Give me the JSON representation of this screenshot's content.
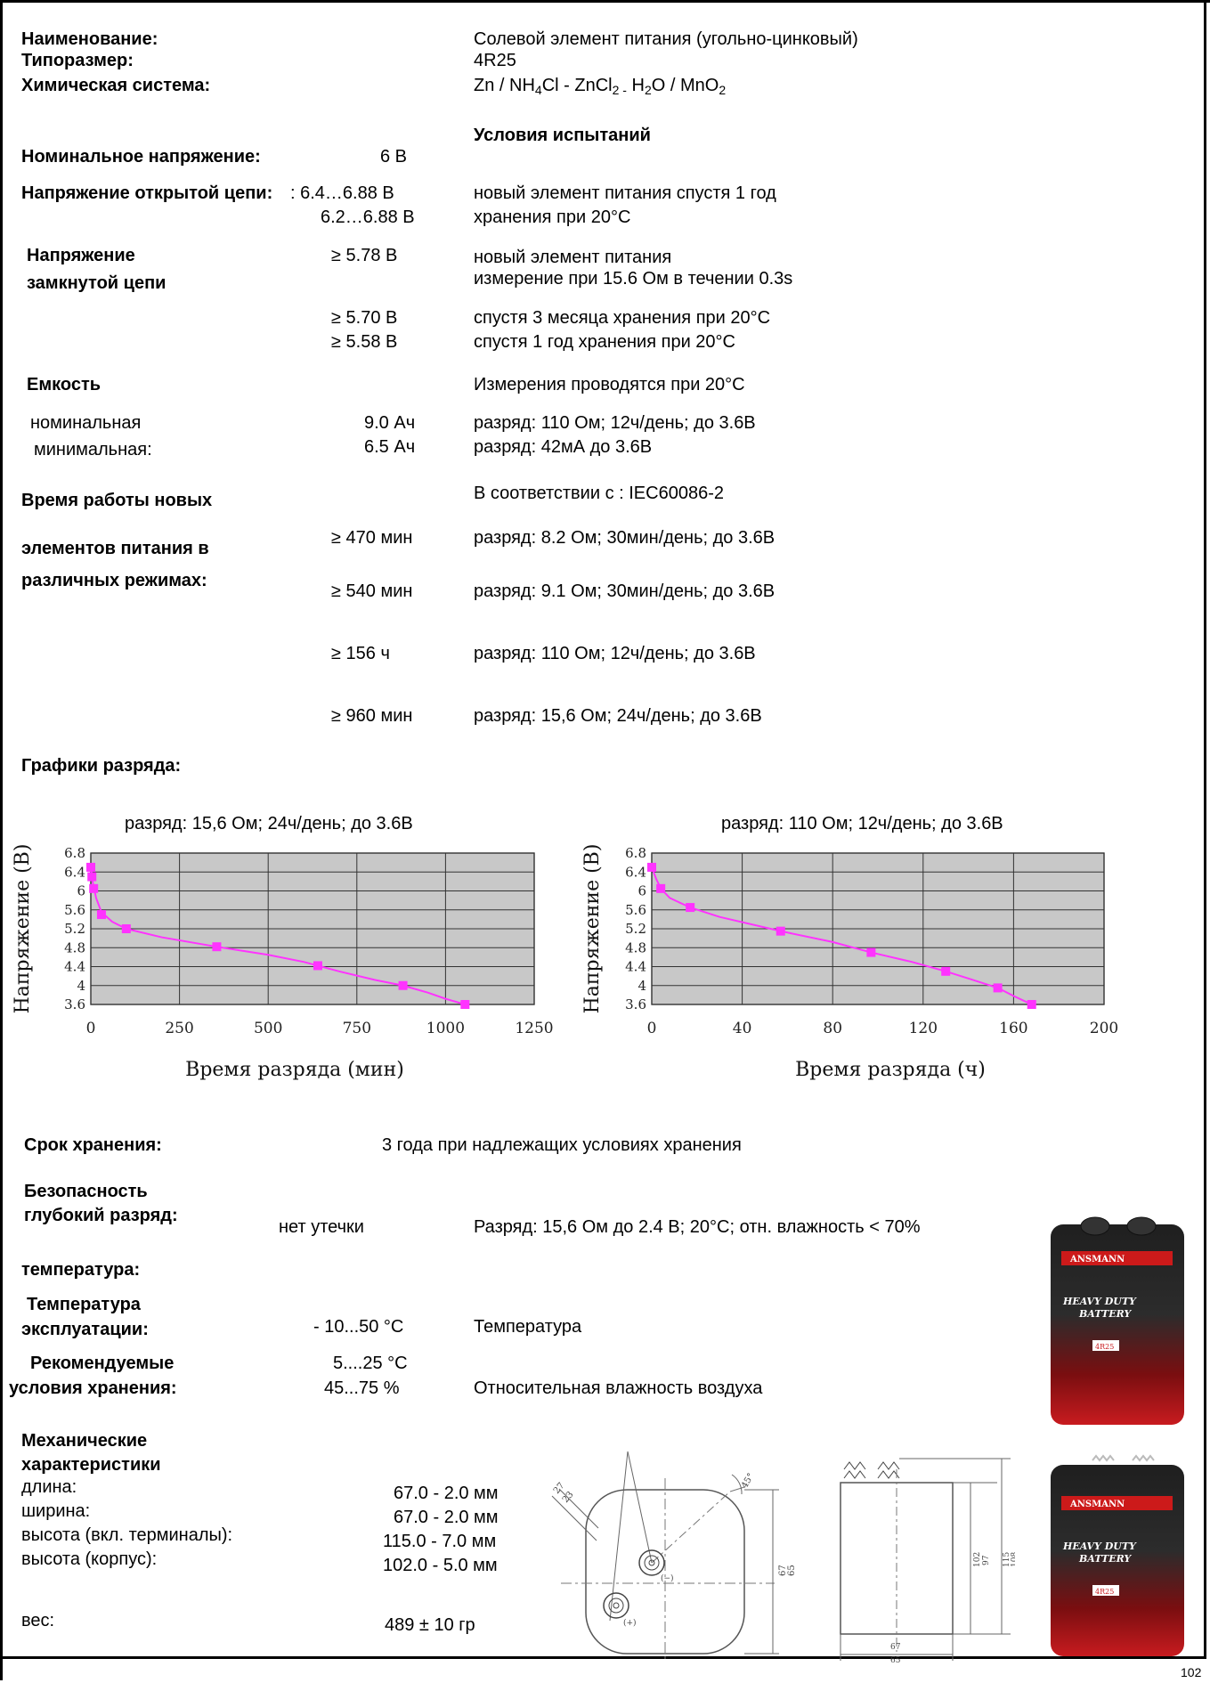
{
  "header": {
    "name_label": "Наименование:",
    "name_value": "Солевой элемент питания (угольно-цинковый)",
    "size_label": "Типоразмер:",
    "size_value": "4R25",
    "chem_label": "Химическая система:",
    "chem_value_parts": [
      "Zn / NH",
      "4",
      "Cl - ZnCl",
      "2 -",
      " H",
      "2",
      "O / MnO",
      "2"
    ]
  },
  "test_conditions_heading": "Условия испытаний",
  "nominal_voltage": {
    "label": "Номинальное напряжение:",
    "value": "6 В"
  },
  "open_circuit": {
    "label": "Напряжение открытой цепи:",
    "value1": ": 6.4…6.88 В",
    "value2": "6.2…6.88 В",
    "cond1": "новый элемент питания спустя 1 год",
    "cond2": "хранения при 20°C"
  },
  "closed_circuit": {
    "label1": "Напряжение",
    "label2": "замкнутой цепи",
    "v1": "≥ 5.78 В",
    "c1a": "новый элемент питания",
    "c1b": "измерение при 15.6 Ом в течении 0.3s",
    "v2": "≥ 5.70 В",
    "v3": "≥ 5.58 В",
    "c2": "спустя 3 месяца хранения при 20°C",
    "c3": "спустя 1 год хранения при 20°C"
  },
  "capacity": {
    "label": "Емкость",
    "cond": "Измерения проводятся при 20°C",
    "nominal_label": "номинальная",
    "nominal_value": "9.0 Ач",
    "nominal_cond": "разряд: 110 Ом; 12ч/день; до 3.6В",
    "min_label": "минимальная:",
    "min_value": "6.5 Ач",
    "min_cond": "разряд: 42мА до 3.6В"
  },
  "runtime": {
    "label1": "Время работы новых",
    "label2": "элементов питания в",
    "label3": "различных режимах:",
    "standard": "В соответствии с : IEC60086-2",
    "rows": [
      {
        "value": "≥ 470 мин",
        "cond": "разряд: 8.2 Ом; 30мин/день; до 3.6В"
      },
      {
        "value": "≥ 540 мин",
        "cond": "разряд: 9.1 Ом; 30мин/день; до 3.6В"
      },
      {
        "value": "≥ 156 ч",
        "cond": "разряд: 110 Ом; 12ч/день; до 3.6В"
      },
      {
        "value": "≥ 960 мин",
        "cond": "разряд: 15,6 Ом; 24ч/день; до 3.6В"
      }
    ]
  },
  "charts_heading": "Графики разряда:",
  "chart_data": [
    {
      "type": "line",
      "title": "разряд: 15,6 Ом; 24ч/день; до 3.6В",
      "xlabel": "Время разряда (мин)",
      "ylabel": "Напряжение (В)",
      "x_ticks": [
        "0",
        "250",
        "500",
        "750",
        "1000",
        "1250"
      ],
      "y_ticks": [
        "3.6",
        "4",
        "4.4",
        "4.8",
        "5.2",
        "5.6",
        "6",
        "6.4",
        "6.8"
      ],
      "xlim": [
        0,
        1250
      ],
      "ylim": [
        3.6,
        6.8
      ],
      "grid": true,
      "series_color": "#ff33ff",
      "x": [
        0,
        3,
        8,
        30,
        100,
        355,
        640,
        880,
        1055
      ],
      "y": [
        6.5,
        6.3,
        6.05,
        5.5,
        5.2,
        4.82,
        4.42,
        4.0,
        3.6
      ],
      "curve_x": [
        0,
        5,
        15,
        30,
        60,
        100,
        200,
        355,
        500,
        600,
        640,
        700,
        800,
        880,
        950,
        1000,
        1055
      ],
      "curve_y": [
        6.55,
        6.2,
        5.85,
        5.55,
        5.35,
        5.2,
        5.02,
        4.82,
        4.65,
        4.5,
        4.42,
        4.3,
        4.12,
        4.0,
        3.85,
        3.72,
        3.6
      ]
    },
    {
      "type": "line",
      "title": "разряд: 110 Ом; 12ч/день; до 3.6В",
      "xlabel": "Время разряда (ч)",
      "ylabel": "Напряжение (В)",
      "x_ticks": [
        "0",
        "40",
        "80",
        "120",
        "160",
        "200"
      ],
      "y_ticks": [
        "3.6",
        "4",
        "4.4",
        "4.8",
        "5.2",
        "5.6",
        "6",
        "6.4",
        "6.8"
      ],
      "xlim": [
        0,
        200
      ],
      "ylim": [
        3.6,
        6.8
      ],
      "grid": true,
      "series_color": "#ff33ff",
      "x": [
        0,
        4,
        17,
        57,
        97,
        130,
        153,
        168
      ],
      "y": [
        6.5,
        6.05,
        5.65,
        5.15,
        4.7,
        4.3,
        3.95,
        3.6
      ],
      "curve_x": [
        0,
        2,
        4,
        8,
        17,
        30,
        57,
        80,
        97,
        115,
        130,
        140,
        153,
        160,
        168
      ],
      "curve_y": [
        6.5,
        6.25,
        6.05,
        5.85,
        5.65,
        5.45,
        5.15,
        4.92,
        4.7,
        4.5,
        4.3,
        4.15,
        3.95,
        3.78,
        3.6
      ]
    }
  ],
  "shelf_life": {
    "label": "Срок хранения:",
    "value": "3 года при надлежащих условиях хранения"
  },
  "safety": {
    "label": "Безопасность",
    "deep_label": "глубокий разряд:",
    "deep_value": "нет утечки",
    "deep_cond": "Разряд: 15,6 Ом до 2.4 В; 20°C; отн. влажность < 70%",
    "temp_label": "температура:"
  },
  "operating_temp": {
    "label1": "Температура",
    "label2": "эксплуатации:",
    "value": "- 10...50  °C",
    "cond": "Температура"
  },
  "storage": {
    "label1": "Рекомендуемые",
    "label2": "условия хранения:",
    "temp_value": "5....25  °C",
    "humidity_value": "45...75  %",
    "cond": "Относительная влажность воздуха"
  },
  "mechanical": {
    "label1": "Механические",
    "label2": "характеристики",
    "rows": [
      {
        "label": "длина:",
        "value": "67.0 - 2.0 мм"
      },
      {
        "label": "ширина:",
        "value": "67.0 - 2.0 мм"
      },
      {
        "label": "высота (вкл. терминалы):",
        "value": "115.0 - 7.0 мм"
      },
      {
        "label": "высота (корпус):",
        "value": "102.0 - 5.0 мм"
      }
    ],
    "weight_label": "вес:",
    "weight_value": "489 ± 10 гр"
  },
  "drawing_labels": {
    "angle": "45°",
    "d27": "27",
    "d23": "23",
    "minus": "(−)",
    "plus": "(+)",
    "side_w": "67\n65",
    "side_a": "67",
    "side_b": "65",
    "h1a": "102",
    "h1b": "97",
    "h2a": "115",
    "h2b": "108",
    "w_a": "67",
    "w_b": "65"
  },
  "product": {
    "brand": "ANSMANN",
    "line1": "HEAVY DUTY",
    "line2": "BATTERY",
    "badge": "4R25"
  },
  "page_number": "102"
}
